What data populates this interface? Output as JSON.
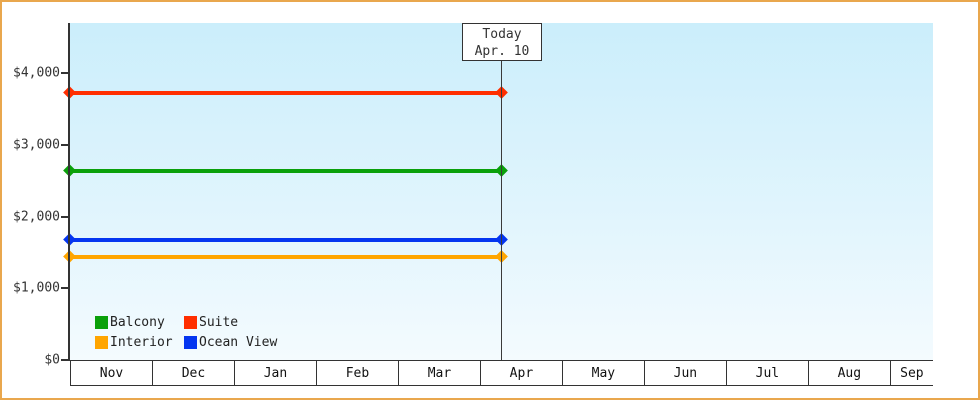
{
  "frame": {
    "border_color": "#e9a74d",
    "background": "#ffffff"
  },
  "chart_data": {
    "type": "line",
    "title": "",
    "xlabel": "",
    "ylabel": "",
    "x_categories": [
      "Nov",
      "Dec",
      "Jan",
      "Feb",
      "Mar",
      "Apr",
      "May",
      "Jun",
      "Jul",
      "Aug",
      "Sep"
    ],
    "y_ticks": [
      {
        "label": "$0",
        "value": 0
      },
      {
        "label": "$1,000",
        "value": 1000
      },
      {
        "label": "$2,000",
        "value": 2000
      },
      {
        "label": "$3,000",
        "value": 3000
      },
      {
        "label": "$4,000",
        "value": 4000
      }
    ],
    "ylim": [
      0,
      4700
    ],
    "grid": false,
    "today_annotation": {
      "line1": "Today",
      "line2": "Apr. 10",
      "x_fraction": 0.5006
    },
    "series": [
      {
        "name": "Suite",
        "color": "#ff2e00",
        "value": 3730
      },
      {
        "name": "Balcony",
        "color": "#0aa00a",
        "value": 2630
      },
      {
        "name": "Ocean View",
        "color": "#0435f0",
        "value": 1680
      },
      {
        "name": "Interior",
        "color": "#ffa500",
        "value": 1430
      }
    ],
    "series_style": {
      "solid_before_today": true,
      "dashed_after_today": true,
      "marker": "diamond"
    },
    "legend": {
      "position": "bottom-left",
      "rows": [
        [
          "Balcony",
          "Suite"
        ],
        [
          "Interior",
          "Ocean View"
        ]
      ]
    },
    "plot_bg_gradient": {
      "top": "#cbeefb",
      "bottom": "#f4fbfe"
    }
  }
}
